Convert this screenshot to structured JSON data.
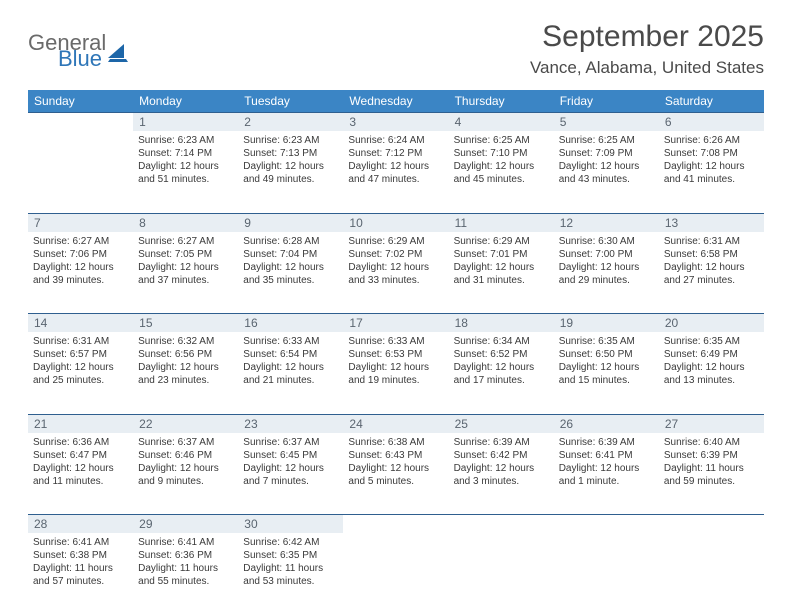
{
  "logo": {
    "word1": "General",
    "word2": "Blue",
    "gray": "#6a6a6a",
    "blue": "#2f76b8"
  },
  "title": "September 2025",
  "location": "Vance, Alabama, United States",
  "header_bg": "#3b85c5",
  "header_fg": "#ffffff",
  "daynum_bg": "#e8eef3",
  "daynum_border": "#2f5f8f",
  "text_color": "#3a3a3a",
  "day_names": [
    "Sunday",
    "Monday",
    "Tuesday",
    "Wednesday",
    "Thursday",
    "Friday",
    "Saturday"
  ],
  "weeks": [
    [
      null,
      {
        "n": "1",
        "sr": "6:23 AM",
        "ss": "7:14 PM",
        "dl": "12 hours and 51 minutes."
      },
      {
        "n": "2",
        "sr": "6:23 AM",
        "ss": "7:13 PM",
        "dl": "12 hours and 49 minutes."
      },
      {
        "n": "3",
        "sr": "6:24 AM",
        "ss": "7:12 PM",
        "dl": "12 hours and 47 minutes."
      },
      {
        "n": "4",
        "sr": "6:25 AM",
        "ss": "7:10 PM",
        "dl": "12 hours and 45 minutes."
      },
      {
        "n": "5",
        "sr": "6:25 AM",
        "ss": "7:09 PM",
        "dl": "12 hours and 43 minutes."
      },
      {
        "n": "6",
        "sr": "6:26 AM",
        "ss": "7:08 PM",
        "dl": "12 hours and 41 minutes."
      }
    ],
    [
      {
        "n": "7",
        "sr": "6:27 AM",
        "ss": "7:06 PM",
        "dl": "12 hours and 39 minutes."
      },
      {
        "n": "8",
        "sr": "6:27 AM",
        "ss": "7:05 PM",
        "dl": "12 hours and 37 minutes."
      },
      {
        "n": "9",
        "sr": "6:28 AM",
        "ss": "7:04 PM",
        "dl": "12 hours and 35 minutes."
      },
      {
        "n": "10",
        "sr": "6:29 AM",
        "ss": "7:02 PM",
        "dl": "12 hours and 33 minutes."
      },
      {
        "n": "11",
        "sr": "6:29 AM",
        "ss": "7:01 PM",
        "dl": "12 hours and 31 minutes."
      },
      {
        "n": "12",
        "sr": "6:30 AM",
        "ss": "7:00 PM",
        "dl": "12 hours and 29 minutes."
      },
      {
        "n": "13",
        "sr": "6:31 AM",
        "ss": "6:58 PM",
        "dl": "12 hours and 27 minutes."
      }
    ],
    [
      {
        "n": "14",
        "sr": "6:31 AM",
        "ss": "6:57 PM",
        "dl": "12 hours and 25 minutes."
      },
      {
        "n": "15",
        "sr": "6:32 AM",
        "ss": "6:56 PM",
        "dl": "12 hours and 23 minutes."
      },
      {
        "n": "16",
        "sr": "6:33 AM",
        "ss": "6:54 PM",
        "dl": "12 hours and 21 minutes."
      },
      {
        "n": "17",
        "sr": "6:33 AM",
        "ss": "6:53 PM",
        "dl": "12 hours and 19 minutes."
      },
      {
        "n": "18",
        "sr": "6:34 AM",
        "ss": "6:52 PM",
        "dl": "12 hours and 17 minutes."
      },
      {
        "n": "19",
        "sr": "6:35 AM",
        "ss": "6:50 PM",
        "dl": "12 hours and 15 minutes."
      },
      {
        "n": "20",
        "sr": "6:35 AM",
        "ss": "6:49 PM",
        "dl": "12 hours and 13 minutes."
      }
    ],
    [
      {
        "n": "21",
        "sr": "6:36 AM",
        "ss": "6:47 PM",
        "dl": "12 hours and 11 minutes."
      },
      {
        "n": "22",
        "sr": "6:37 AM",
        "ss": "6:46 PM",
        "dl": "12 hours and 9 minutes."
      },
      {
        "n": "23",
        "sr": "6:37 AM",
        "ss": "6:45 PM",
        "dl": "12 hours and 7 minutes."
      },
      {
        "n": "24",
        "sr": "6:38 AM",
        "ss": "6:43 PM",
        "dl": "12 hours and 5 minutes."
      },
      {
        "n": "25",
        "sr": "6:39 AM",
        "ss": "6:42 PM",
        "dl": "12 hours and 3 minutes."
      },
      {
        "n": "26",
        "sr": "6:39 AM",
        "ss": "6:41 PM",
        "dl": "12 hours and 1 minute."
      },
      {
        "n": "27",
        "sr": "6:40 AM",
        "ss": "6:39 PM",
        "dl": "11 hours and 59 minutes."
      }
    ],
    [
      {
        "n": "28",
        "sr": "6:41 AM",
        "ss": "6:38 PM",
        "dl": "11 hours and 57 minutes."
      },
      {
        "n": "29",
        "sr": "6:41 AM",
        "ss": "6:36 PM",
        "dl": "11 hours and 55 minutes."
      },
      {
        "n": "30",
        "sr": "6:42 AM",
        "ss": "6:35 PM",
        "dl": "11 hours and 53 minutes."
      },
      null,
      null,
      null,
      null
    ]
  ],
  "labels": {
    "sunrise": "Sunrise:",
    "sunset": "Sunset:",
    "daylight": "Daylight:"
  }
}
